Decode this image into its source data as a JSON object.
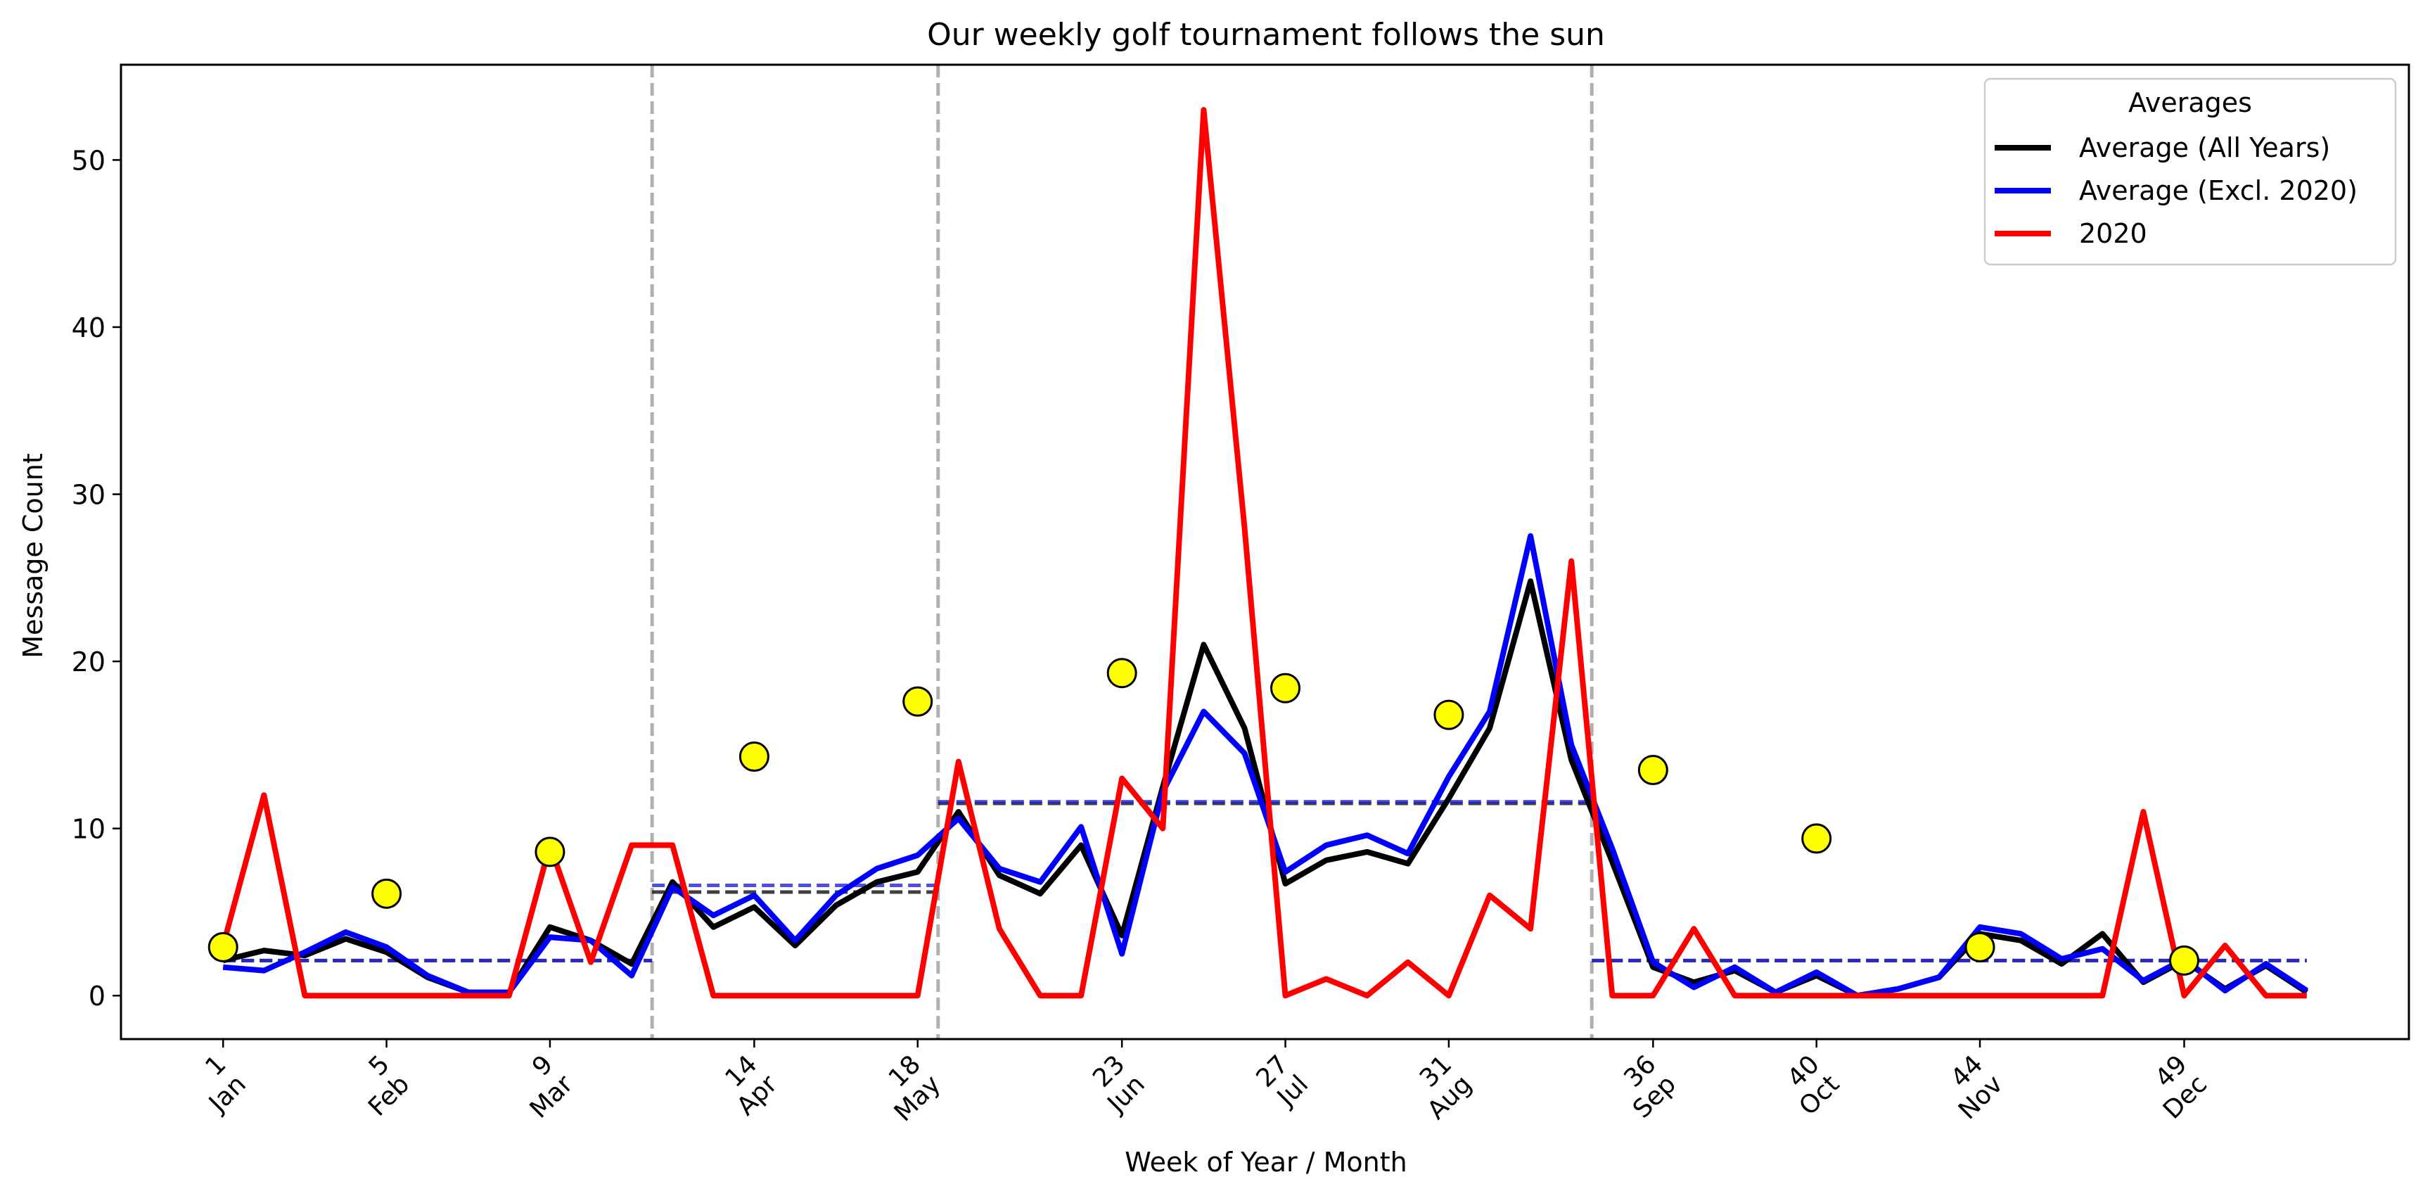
{
  "chart_data": {
    "type": "line",
    "title": "Our weekly golf tournament follows the sun",
    "xlabel": "Week of Year / Month",
    "ylabel": "Message Count",
    "xlim": [
      -1.5,
      54.5
    ],
    "ylim": [
      -2.6,
      55.7
    ],
    "yticks": [
      0,
      10,
      20,
      30,
      40,
      50
    ],
    "xtick_weeks": [
      1,
      5,
      9,
      14,
      18,
      23,
      27,
      31,
      36,
      40,
      44,
      49
    ],
    "xtick_labels": [
      [
        "1",
        "Jan"
      ],
      [
        "5",
        "Feb"
      ],
      [
        "9",
        "Mar"
      ],
      [
        "14",
        "Apr"
      ],
      [
        "18",
        "May"
      ],
      [
        "23",
        "Jun"
      ],
      [
        "27",
        "Jul"
      ],
      [
        "31",
        "Aug"
      ],
      [
        "36",
        "Sep"
      ],
      [
        "40",
        "Oct"
      ],
      [
        "44",
        "Nov"
      ],
      [
        "49",
        "Dec"
      ]
    ],
    "grid": false,
    "legend_position": "top-right",
    "legend_title": "Averages",
    "series": [
      {
        "name": "Average (All Years)",
        "color": "#000000",
        "x": [
          1,
          2,
          3,
          4,
          5,
          6,
          7,
          8,
          9,
          10,
          11,
          12,
          13,
          14,
          15,
          16,
          17,
          18,
          19,
          20,
          21,
          22,
          23,
          24,
          25,
          26,
          27,
          28,
          29,
          30,
          31,
          32,
          33,
          34,
          35,
          36,
          37,
          38,
          39,
          40,
          41,
          42,
          43,
          44,
          45,
          46,
          47,
          48,
          49,
          50,
          51,
          52
        ],
        "y": [
          2.1,
          2.7,
          2.4,
          3.4,
          2.6,
          1.1,
          0.2,
          0.2,
          4.1,
          3.3,
          1.9,
          6.8,
          4.1,
          5.3,
          3.0,
          5.4,
          6.8,
          7.4,
          11.0,
          7.2,
          6.1,
          9.0,
          3.6,
          12.5,
          21.0,
          16.0,
          6.7,
          8.1,
          8.6,
          7.9,
          11.8,
          16.0,
          24.8,
          14.1,
          8.0,
          1.7,
          0.8,
          1.5,
          0.2,
          1.2,
          0.0,
          0.4,
          1.1,
          3.7,
          3.3,
          1.9,
          3.7,
          0.8,
          2.1,
          0.4,
          1.8,
          0.2
        ]
      },
      {
        "name": "Average (Excl. 2020)",
        "color": "#0000ff",
        "x": [
          1,
          2,
          3,
          4,
          5,
          6,
          7,
          8,
          9,
          10,
          11,
          12,
          13,
          14,
          15,
          16,
          17,
          18,
          19,
          20,
          21,
          22,
          23,
          24,
          25,
          26,
          27,
          28,
          29,
          30,
          31,
          32,
          33,
          34,
          35,
          36,
          37,
          38,
          39,
          40,
          41,
          42,
          43,
          44,
          45,
          46,
          47,
          48,
          49,
          50,
          51,
          52
        ],
        "y": [
          1.7,
          1.5,
          2.6,
          3.8,
          2.9,
          1.2,
          0.2,
          0.2,
          3.5,
          3.3,
          1.2,
          6.5,
          4.8,
          6.0,
          3.3,
          6.0,
          7.6,
          8.4,
          10.6,
          7.6,
          6.8,
          10.1,
          2.5,
          12.2,
          17.0,
          14.5,
          7.4,
          9.0,
          9.6,
          8.5,
          13.1,
          17.0,
          27.5,
          15.0,
          8.8,
          2.0,
          0.5,
          1.7,
          0.2,
          1.4,
          0.0,
          0.4,
          1.1,
          4.1,
          3.7,
          2.2,
          2.8,
          0.9,
          2.2,
          0.3,
          1.9,
          0.3
        ]
      },
      {
        "name": "2020",
        "color": "#ff0000",
        "x": [
          1,
          2,
          3,
          4,
          5,
          6,
          7,
          8,
          9,
          10,
          11,
          12,
          13,
          14,
          15,
          16,
          17,
          18,
          19,
          20,
          21,
          22,
          23,
          24,
          25,
          26,
          27,
          28,
          29,
          30,
          31,
          32,
          33,
          34,
          35,
          36,
          37,
          38,
          39,
          40,
          41,
          42,
          43,
          44,
          45,
          46,
          47,
          48,
          49,
          50,
          51,
          52
        ],
        "y": [
          3.0,
          12.0,
          0,
          0,
          0,
          0,
          0,
          0,
          9.0,
          2.0,
          9.0,
          9.0,
          0,
          0,
          0,
          0,
          0,
          0,
          14.0,
          4.0,
          0,
          0,
          13.0,
          10.0,
          53.0,
          28.0,
          0,
          1.0,
          0,
          2.0,
          0,
          6.0,
          4.0,
          26.0,
          0,
          0,
          4.0,
          0,
          0,
          0,
          0,
          0,
          0,
          0,
          0,
          0,
          0,
          11.0,
          0,
          3.0,
          0,
          0
        ]
      }
    ],
    "period_averages": {
      "color_all": "#000000",
      "color_excl": "#2222dd",
      "segments": [
        {
          "x_start": 1,
          "x_end": 11.5,
          "all_years": 2.1,
          "excl_2020": 2.1
        },
        {
          "x_start": 11.5,
          "x_end": 18.5,
          "all_years": 6.2,
          "excl_2020": 6.6
        },
        {
          "x_start": 18.5,
          "x_end": 34.5,
          "all_years": 11.5,
          "excl_2020": 11.6
        },
        {
          "x_start": 34.5,
          "x_end": 52,
          "all_years": 2.1,
          "excl_2020": 2.1
        }
      ]
    },
    "divider_weeks": [
      11.5,
      18.5,
      34.5
    ],
    "markers": {
      "color": "#ffff00",
      "x": [
        1,
        5,
        9,
        14,
        18,
        23,
        27,
        31,
        36,
        40,
        44,
        49
      ],
      "y": [
        2.9,
        6.1,
        8.6,
        14.3,
        17.6,
        19.3,
        18.4,
        16.8,
        13.5,
        9.4,
        2.9,
        2.1
      ]
    }
  }
}
